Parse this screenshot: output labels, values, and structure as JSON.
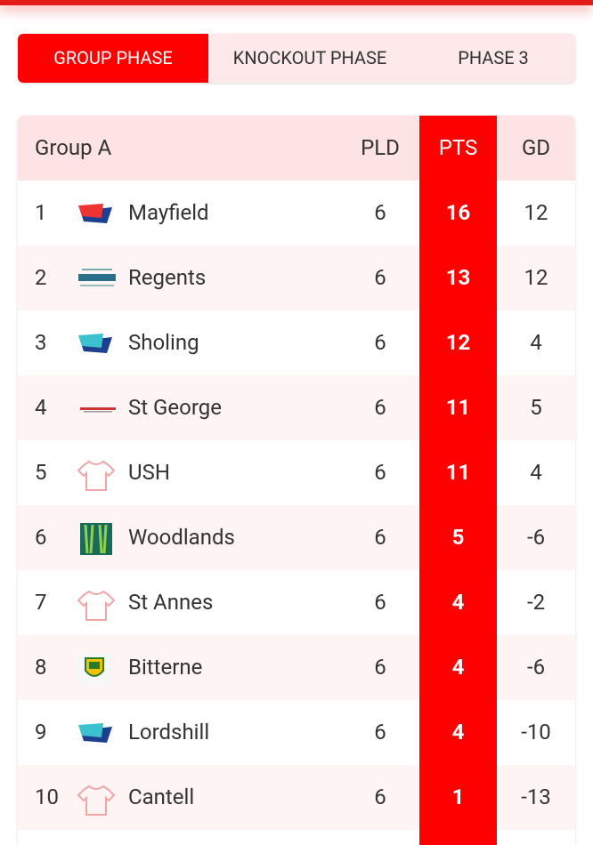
{
  "tabs": [
    "GROUP PHASE",
    "KNOCKOUT PHASE",
    "PHASE 3"
  ],
  "table": {
    "header": {
      "group": "Group A",
      "pld": "PLD",
      "pts": "PTS",
      "gd": "GD"
    },
    "rows": [
      [
        1,
        "Mayfield",
        6,
        16,
        12
      ],
      [
        2,
        "Regents",
        6,
        13,
        12
      ],
      [
        3,
        "Sholing",
        6,
        12,
        4
      ],
      [
        4,
        "St George",
        6,
        11,
        5
      ],
      [
        5,
        "USH",
        6,
        11,
        4
      ],
      [
        6,
        "Woodlands",
        6,
        5,
        -6
      ],
      [
        7,
        "St Annes",
        6,
        4,
        -2
      ],
      [
        8,
        "Bitterne",
        6,
        4,
        -6
      ],
      [
        9,
        "Lordshill",
        6,
        4,
        -10
      ],
      [
        10,
        "Cantell",
        6,
        1,
        -13
      ]
    ]
  }
}
